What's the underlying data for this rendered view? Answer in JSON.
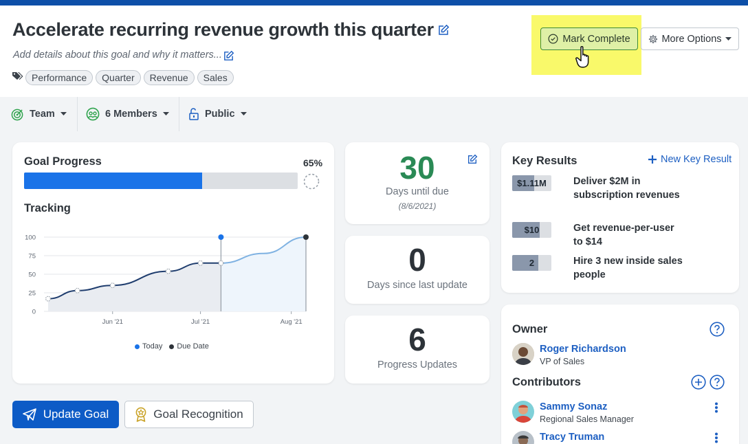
{
  "goal": {
    "title": "Accelerate recurring revenue growth this quarter",
    "description_placeholder": "Add details about this goal and why it matters...",
    "tags": [
      "Performance",
      "Quarter",
      "Revenue",
      "Sales"
    ]
  },
  "actions": {
    "mark_complete": "Mark Complete",
    "more_options": "More Options"
  },
  "subbar": {
    "team": "Team",
    "members": "6 Members",
    "visibility": "Public"
  },
  "progress": {
    "title": "Goal Progress",
    "percent_label": "65%",
    "percent": 65
  },
  "tracking": {
    "title": "Tracking",
    "legend_today": "Today",
    "legend_due": "Due Date"
  },
  "chart_data": {
    "type": "line",
    "title": "Tracking",
    "yticks": [
      "100",
      "75",
      "50",
      "25",
      "0"
    ],
    "ylim": [
      0,
      100
    ],
    "xticks": [
      "Jun '21",
      "Jul '21",
      "Aug '21"
    ],
    "series": [
      {
        "name": "progress",
        "x": [
          "2021-05-10",
          "2021-05-20",
          "2021-06-01",
          "2021-06-20",
          "2021-07-01",
          "2021-07-08"
        ],
        "y": [
          17,
          28,
          35,
          54,
          65,
          65
        ]
      },
      {
        "name": "projection",
        "x": [
          "2021-07-08",
          "2021-08-06"
        ],
        "y": [
          65,
          100
        ]
      }
    ],
    "today": "2021-07-08",
    "due_date": "2021-08-06",
    "legend": [
      "Today",
      "Due Date"
    ],
    "grid": true
  },
  "stats": {
    "days_until_due": "30",
    "days_until_due_label": "Days until due",
    "due_date_label": "(8/6/2021)",
    "days_since_update": "0",
    "days_since_update_label": "Days since last update",
    "progress_updates": "6",
    "progress_updates_label": "Progress Updates"
  },
  "key_results": {
    "title": "Key Results",
    "new_label": "New Key Result",
    "items": [
      {
        "badge": "$1.11M",
        "fill": 0.555,
        "text": "Deliver $2M in subscription revenues"
      },
      {
        "badge": "$10",
        "fill": 0.71,
        "text": "Get revenue-per-user to $14"
      },
      {
        "badge": "2",
        "fill": 0.67,
        "text": "Hire 3 new inside sales people"
      }
    ]
  },
  "owner": {
    "title": "Owner",
    "name": "Roger Richardson",
    "role": "VP of Sales"
  },
  "contributors": {
    "title": "Contributors",
    "people": [
      {
        "name": "Sammy Sonaz",
        "role": "Regional Sales Manager"
      },
      {
        "name": "Tracy Truman",
        "role": ""
      }
    ]
  },
  "buttons": {
    "update_goal": "Update Goal",
    "goal_recognition": "Goal Recognition"
  },
  "colors": {
    "primary": "#0d5bc6",
    "progress": "#1a73e8",
    "highlight": "#f9f96a",
    "due_green": "#2a8a55"
  }
}
